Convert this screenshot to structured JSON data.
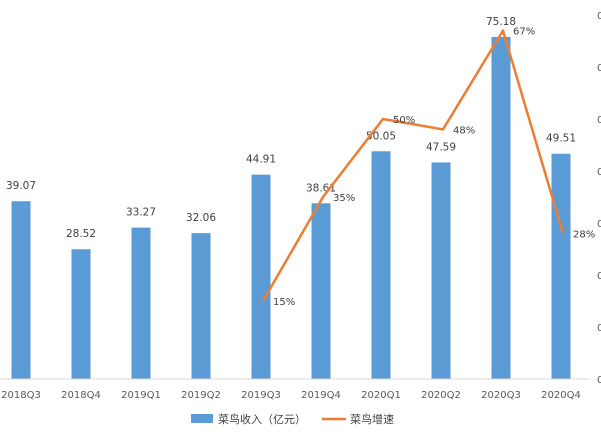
{
  "chart_data": {
    "type": "bar",
    "categories": [
      "2018Q3",
      "2018Q4",
      "2019Q1",
      "2019Q2",
      "2019Q3",
      "2019Q4",
      "2020Q1",
      "2020Q2",
      "2020Q3",
      "2020Q4"
    ],
    "series": [
      {
        "name": "菜鸟收入（亿元）",
        "type": "bar",
        "color": "#5B9BD5",
        "values": [
          39.07,
          28.52,
          33.27,
          32.06,
          44.91,
          38.61,
          50.05,
          47.59,
          75.18,
          49.51
        ],
        "labels": [
          "39.07",
          "28.52",
          "33.27",
          "32.06",
          "44.91",
          "38.61",
          "50.05",
          "47.59",
          "75.18",
          "49.51"
        ]
      },
      {
        "name": "菜鸟增速",
        "type": "line",
        "color": "#ED7D31",
        "axis": "right",
        "values": [
          null,
          null,
          null,
          null,
          15,
          35,
          50,
          48,
          67,
          28
        ],
        "labels": [
          "",
          "",
          "",
          "",
          "15%",
          "35%",
          "50%",
          "48%",
          "67%",
          "28%"
        ]
      }
    ],
    "ylim": [
      0,
      80
    ],
    "y2lim": [
      0,
      70
    ],
    "legend_position": "bottom",
    "grid": false
  }
}
